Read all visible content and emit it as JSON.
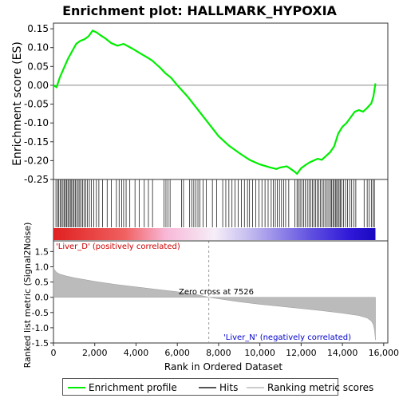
{
  "chart_data": {
    "type": "line",
    "title": "Enrichment plot: HALLMARK_HYPOXIA",
    "es_panel": {
      "ylabel": "Enrichment score (ES)",
      "ylim": [
        -0.25,
        0.165
      ],
      "yticks": [
        -0.25,
        -0.2,
        -0.15,
        -0.1,
        -0.05,
        0.0,
        0.05,
        0.1,
        0.15
      ],
      "ytick_labels": [
        "-0.25",
        "-0.20",
        "-0.15",
        "-0.10",
        "-0.05",
        "0.00",
        "0.05",
        "0.10",
        "0.15"
      ],
      "series": [
        {
          "name": "Enrichment profile",
          "color": "#00ee00",
          "x": [
            0,
            150,
            300,
            500,
            700,
            900,
            1100,
            1300,
            1500,
            1700,
            1900,
            2100,
            2300,
            2500,
            2800,
            3100,
            3400,
            3800,
            4200,
            4600,
            4800,
            5000,
            5200,
            5400,
            5700,
            6000,
            6500,
            7000,
            7500,
            8000,
            8500,
            9000,
            9500,
            10000,
            10500,
            10800,
            11000,
            11300,
            11500,
            11700,
            11800,
            12000,
            12200,
            12400,
            12600,
            12800,
            13000,
            13200,
            13400,
            13600,
            13700,
            13800,
            14000,
            14200,
            14400,
            14600,
            14800,
            15000,
            15200,
            15400,
            15500,
            15600
          ],
          "y": [
            0.0,
            -0.005,
            0.02,
            0.045,
            0.07,
            0.09,
            0.11,
            0.118,
            0.122,
            0.13,
            0.145,
            0.14,
            0.132,
            0.125,
            0.112,
            0.105,
            0.11,
            0.098,
            0.085,
            0.072,
            0.065,
            0.055,
            0.045,
            0.033,
            0.02,
            0.0,
            -0.03,
            -0.065,
            -0.1,
            -0.135,
            -0.16,
            -0.18,
            -0.198,
            -0.21,
            -0.218,
            -0.222,
            -0.218,
            -0.215,
            -0.222,
            -0.23,
            -0.235,
            -0.22,
            -0.212,
            -0.205,
            -0.2,
            -0.195,
            -0.198,
            -0.188,
            -0.178,
            -0.162,
            -0.145,
            -0.128,
            -0.11,
            -0.1,
            -0.085,
            -0.07,
            -0.066,
            -0.07,
            -0.06,
            -0.048,
            -0.03,
            0.005
          ]
        }
      ],
      "zero_line": true
    },
    "hits_panel": {
      "series_name": "Hits",
      "hit_ranks": [
        120,
        200,
        260,
        330,
        390,
        460,
        520,
        580,
        640,
        700,
        760,
        820,
        880,
        940,
        1000,
        1060,
        1130,
        1200,
        1270,
        1340,
        1410,
        1480,
        1560,
        1650,
        1740,
        1830,
        1950,
        2080,
        2200,
        2380,
        2600,
        2800,
        3050,
        3180,
        3310,
        3400,
        3520,
        3700,
        3950,
        4150,
        4400,
        4600,
        4800,
        5350,
        5450,
        5550,
        5650,
        6200,
        6300,
        6600,
        6700,
        6800,
        6900,
        7000,
        7100,
        7250,
        7400,
        7700,
        7900,
        8200,
        8350,
        8500,
        8650,
        8800,
        8950,
        9100,
        9250,
        9400,
        9500,
        9650,
        9800,
        9950,
        10100,
        10250,
        10400,
        10550,
        10650,
        10750,
        10850,
        10950,
        11050,
        11150,
        11250,
        11400,
        11700,
        11800,
        11870,
        11950,
        12030,
        12120,
        12200,
        12300,
        12380,
        12460,
        12540,
        12620,
        12700,
        12780,
        12860,
        12940,
        13020,
        13100,
        13180,
        13260,
        13340,
        13420,
        13480,
        13540,
        13600,
        13660,
        13720,
        13780,
        13840,
        13900,
        13960,
        14050,
        14150,
        14250,
        14350,
        14450,
        14550,
        14650,
        15050,
        15200,
        15300,
        15400,
        15480,
        15550
      ]
    },
    "ranked_panel": {
      "series_name": "Ranking metric scores",
      "ylabel": "Ranked list metric (Signal2Noise)",
      "ylim": [
        -1.5,
        1.85
      ],
      "yticks": [
        -1.5,
        -1.0,
        -0.5,
        0.0,
        0.5,
        1.0,
        1.5
      ],
      "ytick_labels": [
        "-1.5",
        "-1.0",
        "-0.5",
        "0.0",
        "0.5",
        "1.0",
        "1.5"
      ],
      "x": [
        0,
        50,
        150,
        300,
        600,
        1000,
        2000,
        3000,
        4000,
        5000,
        6000,
        7000,
        7526,
        8000,
        9000,
        10000,
        11000,
        12000,
        13000,
        14000,
        14800,
        15200,
        15400,
        15500,
        15560,
        15600
      ],
      "y": [
        1.0,
        0.9,
        0.82,
        0.76,
        0.7,
        0.64,
        0.52,
        0.42,
        0.34,
        0.26,
        0.18,
        0.08,
        0.0,
        -0.05,
        -0.15,
        -0.23,
        -0.3,
        -0.37,
        -0.44,
        -0.52,
        -0.6,
        -0.68,
        -0.78,
        -0.9,
        -1.1,
        -1.4
      ],
      "zero_cross_label": "Zero cross at 7526",
      "zero_cross_rank": 7526,
      "pos_label": "'Liver_D' (positively correlated)",
      "neg_label": "'Liver_N' (negatively correlated)"
    },
    "x_axis": {
      "xlabel": "Rank in Ordered Dataset",
      "xlim": [
        0,
        16200
      ],
      "xticks": [
        0,
        2000,
        4000,
        6000,
        8000,
        10000,
        12000,
        14000,
        16000
      ],
      "xtick_labels": [
        "0",
        "2,000",
        "4,000",
        "6,000",
        "8,000",
        "10,000",
        "12,000",
        "14,000",
        "16,000"
      ],
      "n_genes": 15600
    },
    "legend": {
      "position": "bottom",
      "items": [
        {
          "label": "Enrichment profile",
          "color": "#00ee00"
        },
        {
          "label": "Hits",
          "color": "#555555"
        },
        {
          "label": "Ranking metric scores",
          "color": "#cccccc"
        }
      ]
    },
    "colors": {
      "es_line": "#00ee00",
      "fill": "#bbbbbb",
      "pos_label": "#cc0000",
      "neg_label": "#0000cc",
      "heat_pos": "#ee2020",
      "heat_mid": "#f0c8ec",
      "heat_neg": "#2010e0"
    }
  }
}
